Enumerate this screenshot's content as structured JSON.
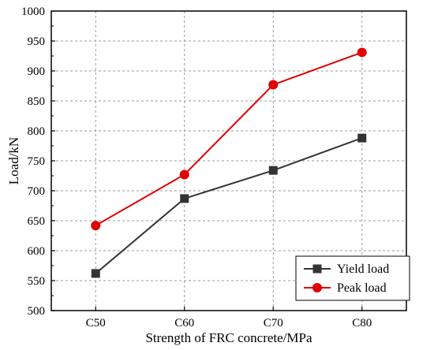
{
  "chart_data": {
    "type": "line",
    "title": "",
    "xlabel": "Strength of FRC concrete/MPa",
    "ylabel": "Load/kN",
    "categories": [
      "C50",
      "C60",
      "C70",
      "C80"
    ],
    "ylim": [
      500,
      1000
    ],
    "yticks": [
      500,
      550,
      600,
      650,
      700,
      750,
      800,
      850,
      900,
      950,
      1000
    ],
    "grid": true,
    "legend_position": "bottom-right",
    "series": [
      {
        "name": "Yield load",
        "values": [
          562,
          687,
          734,
          788
        ],
        "color": "#333333",
        "marker": "square"
      },
      {
        "name": "Peak load",
        "values": [
          642,
          727,
          877,
          931
        ],
        "color": "#e00000",
        "marker": "circle"
      }
    ]
  }
}
